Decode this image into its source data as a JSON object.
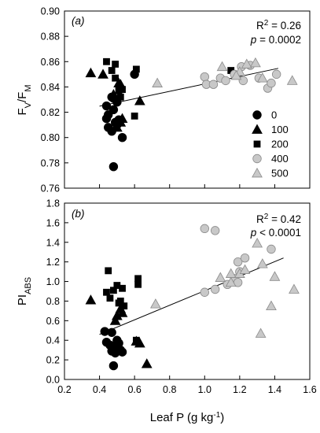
{
  "chart_data": [
    {
      "type": "scatter",
      "panel_label": "(a)",
      "ylabel": {
        "main": "F",
        "sub1": "V",
        "sep": "/F",
        "sub2": "M"
      },
      "ylim": [
        0.76,
        0.9
      ],
      "yticks": [
        "0.76",
        "0.78",
        "0.80",
        "0.82",
        "0.84",
        "0.86",
        "0.88",
        "0.90"
      ],
      "xlim": [
        0.2,
        1.6
      ],
      "stats": {
        "r2_prefix": "R",
        "r2_sup": "2",
        "r2_value": " = 0.26",
        "p_symbol": "p",
        "p_value": " = 0.0002"
      },
      "regression": {
        "x1": 0.4,
        "y1": 0.8248,
        "x2": 1.42,
        "y2": 0.8547
      },
      "legend_position": "lower-right",
      "series": [
        {
          "name": "0",
          "marker": "circle",
          "fill": "#000000",
          "points": [
            [
              0.44,
              0.825
            ],
            [
              0.45,
              0.818
            ],
            [
              0.47,
              0.832
            ],
            [
              0.48,
              0.831
            ],
            [
              0.5,
              0.828
            ],
            [
              0.48,
              0.822
            ],
            [
              0.51,
              0.814
            ],
            [
              0.45,
              0.808
            ],
            [
              0.47,
              0.805
            ],
            [
              0.49,
              0.812
            ],
            [
              0.5,
              0.81
            ],
            [
              0.53,
              0.8
            ],
            [
              0.44,
              0.815
            ],
            [
              0.48,
              0.777
            ],
            [
              0.6,
              0.85
            ]
          ]
        },
        {
          "name": "100",
          "marker": "triangle",
          "fill": "#000000",
          "points": [
            [
              0.35,
              0.851
            ],
            [
              0.42,
              0.85
            ],
            [
              0.48,
              0.834
            ],
            [
              0.51,
              0.843
            ],
            [
              0.52,
              0.842
            ],
            [
              0.53,
              0.815
            ],
            [
              0.5,
              0.808
            ],
            [
              0.52,
              0.812
            ],
            [
              0.63,
              0.829
            ]
          ]
        },
        {
          "name": "200",
          "marker": "square",
          "fill": "#000000",
          "points": [
            [
              0.44,
              0.86
            ],
            [
              0.49,
              0.858
            ],
            [
              0.47,
              0.853
            ],
            [
              0.49,
              0.847
            ],
            [
              0.51,
              0.837
            ],
            [
              0.53,
              0.838
            ],
            [
              0.5,
              0.831
            ],
            [
              0.52,
              0.832
            ],
            [
              0.61,
              0.854
            ],
            [
              0.6,
              0.817
            ],
            [
              1.15,
              0.853
            ]
          ]
        },
        {
          "name": "400",
          "marker": "circle",
          "fill": "#c8c8c8",
          "points": [
            [
              1.0,
              0.848
            ],
            [
              1.01,
              0.842
            ],
            [
              1.05,
              0.842
            ],
            [
              1.09,
              0.847
            ],
            [
              1.12,
              0.845
            ],
            [
              1.17,
              0.85
            ],
            [
              1.21,
              0.856
            ],
            [
              1.22,
              0.845
            ],
            [
              1.26,
              0.857
            ],
            [
              1.31,
              0.847
            ],
            [
              1.36,
              0.839
            ],
            [
              1.38,
              0.843
            ],
            [
              1.41,
              0.85
            ]
          ]
        },
        {
          "name": "500",
          "marker": "triangle",
          "fill": "#c8c8c8",
          "points": [
            [
              0.73,
              0.843
            ],
            [
              1.1,
              0.856
            ],
            [
              1.2,
              0.852
            ],
            [
              1.24,
              0.858
            ],
            [
              1.29,
              0.859
            ],
            [
              1.33,
              0.847
            ],
            [
              1.5,
              0.845
            ],
            [
              1.18,
              0.849
            ]
          ]
        }
      ]
    },
    {
      "type": "scatter",
      "panel_label": "(b)",
      "ylabel": {
        "main": "PI",
        "sub1": "ABS"
      },
      "xlabel": {
        "text": "Leaf P (g kg",
        "sup": "-1",
        "close": ")"
      },
      "ylim": [
        0.0,
        1.8
      ],
      "yticks": [
        "0.0",
        "0.2",
        "0.4",
        "0.6",
        "0.8",
        "1.0",
        "1.2",
        "1.4",
        "1.6",
        "1.8"
      ],
      "xlim": [
        0.2,
        1.6
      ],
      "xticks": [
        "0.2",
        "0.4",
        "0.6",
        "0.8",
        "1.0",
        "1.2",
        "1.4",
        "1.6"
      ],
      "stats": {
        "r2_prefix": "R",
        "r2_sup": "2",
        "r2_value": " = 0.42",
        "p_symbol": "p",
        "p_value": " < 0.0001"
      },
      "regression": {
        "x1": 0.4,
        "y1": 0.46,
        "x2": 1.45,
        "y2": 1.24
      },
      "series": [
        {
          "name": "0",
          "marker": "circle",
          "fill": "#000000",
          "points": [
            [
              0.43,
              0.49
            ],
            [
              0.47,
              0.48
            ],
            [
              0.44,
              0.38
            ],
            [
              0.46,
              0.35
            ],
            [
              0.48,
              0.34
            ],
            [
              0.5,
              0.32
            ],
            [
              0.52,
              0.3
            ],
            [
              0.53,
              0.28
            ],
            [
              0.47,
              0.29
            ],
            [
              0.49,
              0.27
            ],
            [
              0.5,
              0.4
            ],
            [
              0.51,
              0.37
            ],
            [
              0.48,
              0.14
            ]
          ]
        },
        {
          "name": "100",
          "marker": "triangle",
          "fill": "#000000",
          "points": [
            [
              0.35,
              0.81
            ],
            [
              0.49,
              0.6
            ],
            [
              0.5,
              0.65
            ],
            [
              0.52,
              0.72
            ],
            [
              0.53,
              0.68
            ],
            [
              0.61,
              0.39
            ],
            [
              0.63,
              0.37
            ],
            [
              0.67,
              0.16
            ]
          ]
        },
        {
          "name": "200",
          "marker": "square",
          "fill": "#000000",
          "points": [
            [
              0.45,
              1.11
            ],
            [
              0.44,
              0.89
            ],
            [
              0.46,
              0.83
            ],
            [
              0.48,
              0.91
            ],
            [
              0.5,
              0.96
            ],
            [
              0.51,
              0.78
            ],
            [
              0.52,
              0.8
            ],
            [
              0.54,
              0.75
            ],
            [
              0.53,
              0.93
            ],
            [
              0.62,
              1.03
            ],
            [
              0.62,
              0.97
            ],
            [
              0.61,
              0.4
            ]
          ]
        },
        {
          "name": "400",
          "marker": "circle",
          "fill": "#c8c8c8",
          "points": [
            [
              1.0,
              1.54
            ],
            [
              1.06,
              1.52
            ],
            [
              1.0,
              0.89
            ],
            [
              1.06,
              0.92
            ],
            [
              1.13,
              0.97
            ],
            [
              1.17,
              1.03
            ],
            [
              1.19,
              1.2
            ],
            [
              1.2,
              1.1
            ],
            [
              1.23,
              1.24
            ],
            [
              1.38,
              1.33
            ],
            [
              1.19,
              0.99
            ]
          ]
        },
        {
          "name": "500",
          "marker": "triangle",
          "fill": "#c8c8c8",
          "points": [
            [
              0.72,
              0.77
            ],
            [
              1.09,
              1.04
            ],
            [
              1.15,
              1.08
            ],
            [
              1.2,
              1.08
            ],
            [
              1.23,
              1.12
            ],
            [
              1.3,
              1.39
            ],
            [
              1.33,
              1.18
            ],
            [
              1.4,
              1.05
            ],
            [
              1.38,
              0.75
            ],
            [
              1.32,
              0.47
            ],
            [
              1.51,
              0.92
            ],
            [
              1.15,
              0.99
            ]
          ]
        }
      ]
    }
  ]
}
